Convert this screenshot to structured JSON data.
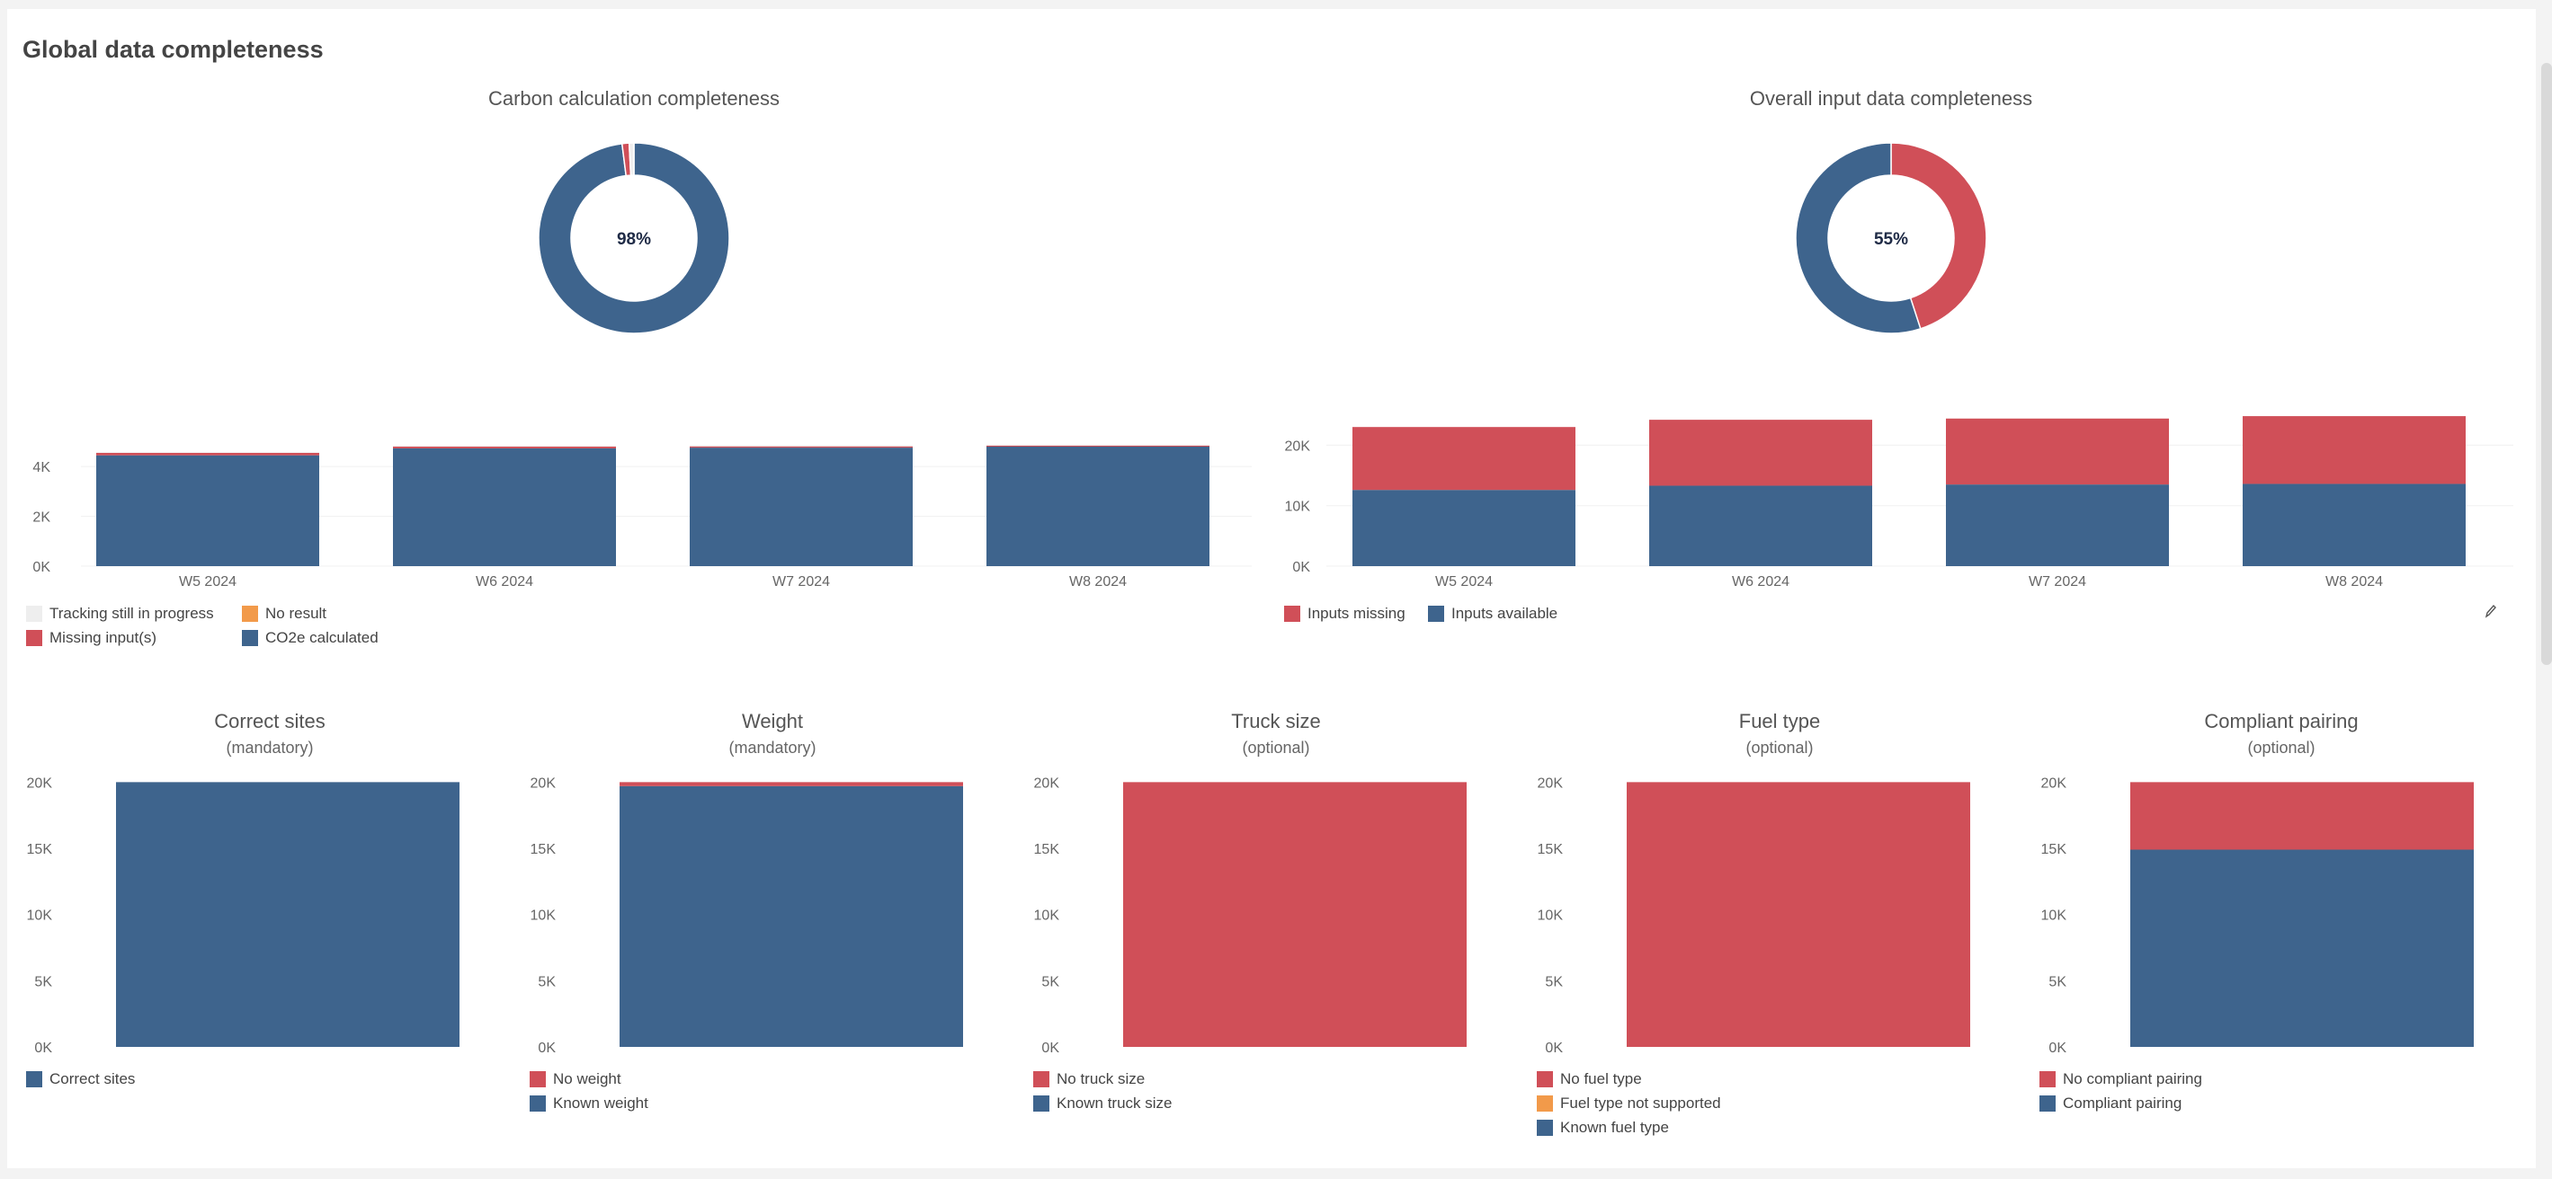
{
  "page_title": "Global data completeness",
  "colors": {
    "blue": "#3e648d",
    "red": "#d04f58",
    "orange": "#f29a4a",
    "lightgray": "#eeeeee",
    "axis_text": "#666666"
  },
  "icons": {
    "edit": "pencil-icon"
  },
  "donuts": [
    {
      "title": "Carbon calculation completeness",
      "center_label": "98%",
      "slices": [
        {
          "name": "CO2e calculated",
          "value": 98.0
        },
        {
          "name": "Missing input(s)",
          "value": 1.2
        },
        {
          "name": "Tracking still in progress",
          "value": 0.8
        }
      ]
    },
    {
      "title": "Overall input data completeness",
      "center_label": "55%",
      "slices": [
        {
          "name": "Inputs missing",
          "value": 45
        },
        {
          "name": "Inputs available",
          "value": 55
        }
      ]
    }
  ],
  "weekly_legend_left": [
    {
      "label": "Tracking still in progress",
      "color": "#eeeeee"
    },
    {
      "label": "No result",
      "color": "#f29a4a"
    },
    {
      "label": "Missing input(s)",
      "color": "#d04f58"
    },
    {
      "label": "CO2e calculated",
      "color": "#3e648d"
    }
  ],
  "weekly_legend_right": [
    {
      "label": "Inputs missing",
      "color": "#d04f58"
    },
    {
      "label": "Inputs available",
      "color": "#3e648d"
    }
  ],
  "chart_data": [
    {
      "type": "bar",
      "title": "",
      "categories": [
        "W5 2024",
        "W6 2024",
        "W7 2024",
        "W8 2024"
      ],
      "ylim": [
        0,
        4800
      ],
      "ticks": [
        "0K",
        "2K",
        "4K"
      ],
      "tick_values": [
        0,
        2000,
        4000
      ],
      "stacked": true,
      "series": [
        {
          "name": "CO2e calculated",
          "color": "#3e648d",
          "values": [
            4450,
            4730,
            4760,
            4800
          ]
        },
        {
          "name": "Missing input(s)",
          "color": "#d04f58",
          "values": [
            100,
            70,
            50,
            40
          ]
        },
        {
          "name": "Tracking still in progress",
          "color": "#eeeeee",
          "values": [
            20,
            20,
            40,
            40
          ]
        }
      ]
    },
    {
      "type": "bar",
      "title": "",
      "categories": [
        "W5 2024",
        "W6 2024",
        "W7 2024",
        "W8 2024"
      ],
      "ylim": [
        0,
        26000
      ],
      "ticks": [
        "0K",
        "10K",
        "20K"
      ],
      "tick_values": [
        0,
        10000,
        20000
      ],
      "stacked": true,
      "series": [
        {
          "name": "Inputs available",
          "color": "#3e648d",
          "values": [
            12600,
            13300,
            13500,
            13600
          ]
        },
        {
          "name": "Inputs missing",
          "color": "#d04f58",
          "values": [
            10400,
            10900,
            10900,
            11200
          ]
        }
      ]
    },
    {
      "type": "bar",
      "title": "Correct sites",
      "subtitle": "(mandatory)",
      "ylim": [
        0,
        20500
      ],
      "ticks": [
        "0K",
        "5K",
        "10K",
        "15K",
        "20K"
      ],
      "tick_values": [
        0,
        5000,
        10000,
        15000,
        20000
      ],
      "stacked": true,
      "series": [
        {
          "name": "Correct sites",
          "color": "#3e648d",
          "values": [
            20000
          ]
        }
      ],
      "legend": [
        {
          "label": "Correct sites",
          "color": "#3e648d"
        }
      ]
    },
    {
      "type": "bar",
      "title": "Weight",
      "subtitle": "(mandatory)",
      "ylim": [
        0,
        20500
      ],
      "ticks": [
        "0K",
        "5K",
        "10K",
        "15K",
        "20K"
      ],
      "tick_values": [
        0,
        5000,
        10000,
        15000,
        20000
      ],
      "stacked": true,
      "series": [
        {
          "name": "Known weight",
          "color": "#3e648d",
          "values": [
            19700
          ]
        },
        {
          "name": "No weight",
          "color": "#d04f58",
          "values": [
            300
          ]
        }
      ],
      "legend": [
        {
          "label": "No weight",
          "color": "#d04f58"
        },
        {
          "label": "Known weight",
          "color": "#3e648d"
        }
      ]
    },
    {
      "type": "bar",
      "title": "Truck size",
      "subtitle": "(optional)",
      "ylim": [
        0,
        20500
      ],
      "ticks": [
        "0K",
        "5K",
        "10K",
        "15K",
        "20K"
      ],
      "tick_values": [
        0,
        5000,
        10000,
        15000,
        20000
      ],
      "stacked": true,
      "series": [
        {
          "name": "No truck size",
          "color": "#d04f58",
          "values": [
            20000
          ]
        }
      ],
      "legend": [
        {
          "label": "No truck size",
          "color": "#d04f58"
        },
        {
          "label": "Known truck size",
          "color": "#3e648d"
        }
      ]
    },
    {
      "type": "bar",
      "title": "Fuel type",
      "subtitle": "(optional)",
      "ylim": [
        0,
        20500
      ],
      "ticks": [
        "0K",
        "5K",
        "10K",
        "15K",
        "20K"
      ],
      "tick_values": [
        0,
        5000,
        10000,
        15000,
        20000
      ],
      "stacked": true,
      "series": [
        {
          "name": "No fuel type",
          "color": "#d04f58",
          "values": [
            20000
          ]
        }
      ],
      "legend": [
        {
          "label": "No fuel type",
          "color": "#d04f58"
        },
        {
          "label": "Fuel type not supported",
          "color": "#f29a4a"
        },
        {
          "label": "Known fuel type",
          "color": "#3e648d"
        }
      ]
    },
    {
      "type": "bar",
      "title": "Compliant pairing",
      "subtitle": "(optional)",
      "ylim": [
        0,
        20500
      ],
      "ticks": [
        "0K",
        "5K",
        "10K",
        "15K",
        "20K"
      ],
      "tick_values": [
        0,
        5000,
        10000,
        15000,
        20000
      ],
      "stacked": true,
      "series": [
        {
          "name": "Compliant pairing",
          "color": "#3e648d",
          "values": [
            14900
          ]
        },
        {
          "name": "No compliant pairing",
          "color": "#d04f58",
          "values": [
            5100
          ]
        }
      ],
      "legend": [
        {
          "label": "No compliant pairing",
          "color": "#d04f58"
        },
        {
          "label": "Compliant pairing",
          "color": "#3e648d"
        }
      ]
    }
  ]
}
